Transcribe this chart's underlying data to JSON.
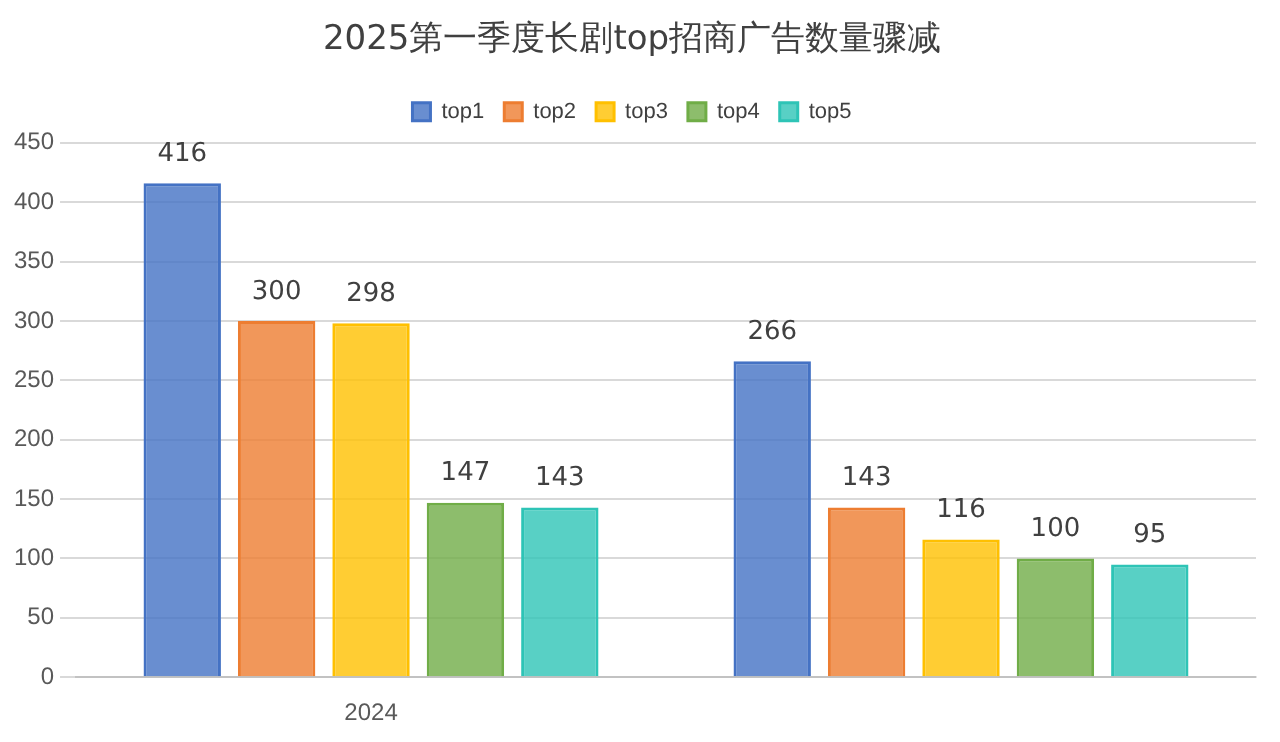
{
  "chart_data": {
    "type": "bar",
    "title": "2025第一季度长剧top招商广告数量骤减",
    "categories": [
      "2024",
      null
    ],
    "series": [
      {
        "name": "top1",
        "color": "#4472c4",
        "values": [
          416,
          266
        ]
      },
      {
        "name": "top2",
        "color": "#ed7d31",
        "values": [
          300,
          143
        ]
      },
      {
        "name": "top3",
        "color": "#ffc000",
        "values": [
          298,
          116
        ]
      },
      {
        "name": "top4",
        "color": "#70ad47",
        "values": [
          147,
          100
        ]
      },
      {
        "name": "top5",
        "color": "#2ec4b6",
        "values": [
          143,
          95
        ]
      }
    ],
    "ylim": [
      0,
      450
    ],
    "yticks": [
      0,
      50,
      100,
      150,
      200,
      250,
      300,
      350,
      400,
      450
    ],
    "grid": "y",
    "legend": "top",
    "data_labels": true
  }
}
